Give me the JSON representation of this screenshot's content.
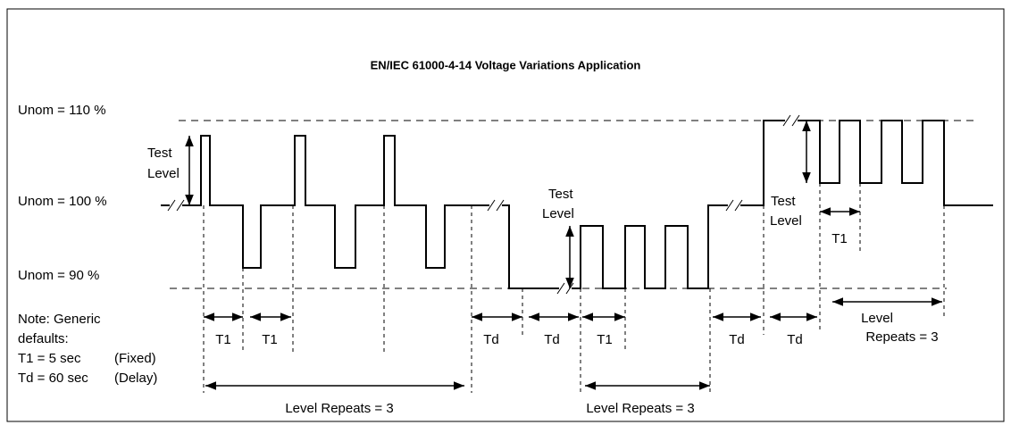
{
  "title": "EN/IEC 61000-4-14 Voltage Variations Application",
  "levels": [
    "Unom = 110 %",
    "Unom = 100 %",
    "Unom = 90 %"
  ],
  "test_levels": [
    [
      "Test",
      "Level"
    ],
    [
      "Test",
      "Level"
    ],
    [
      "Test",
      "Level"
    ]
  ],
  "note": [
    "Note: Generic",
    "defaults:",
    "T1 = 5 sec",
    "(Fixed)",
    "Td = 60 sec",
    "(Delay)"
  ],
  "intervals": [
    "T1",
    "T1",
    "Td",
    "Td",
    "T1",
    "Td",
    "Td",
    "T1"
  ],
  "repeats": [
    "Level Repeats = 3",
    "Level Repeats = 3"
  ],
  "repeats_right": [
    "Level",
    "Repeats = 3"
  ]
}
